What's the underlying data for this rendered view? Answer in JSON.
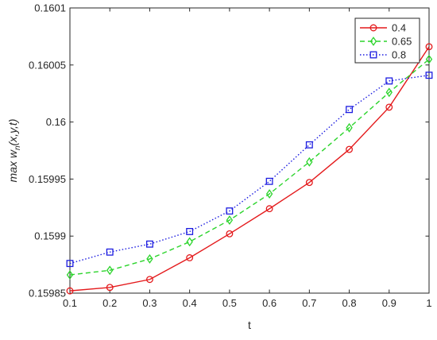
{
  "chart_data": {
    "type": "line",
    "title": "",
    "xlabel": "t",
    "ylabel": "max w_n(x,y,t)",
    "ylabel_parts": {
      "prefix": "max w",
      "subscript": "n",
      "suffix": "(x,y,t)"
    },
    "xlim": [
      0.1,
      1.0
    ],
    "ylim": [
      0.15985,
      0.1601
    ],
    "x_ticks": [
      0.1,
      0.2,
      0.3,
      0.4,
      0.5,
      0.6,
      0.7,
      0.8,
      0.9,
      1.0
    ],
    "x_tick_labels": [
      "0.1",
      "0.2",
      "0.3",
      "0.4",
      "0.5",
      "0.6",
      "0.7",
      "0.8",
      "0.9",
      "1"
    ],
    "y_ticks": [
      0.15985,
      0.1599,
      0.15995,
      0.16,
      0.16005,
      0.1601
    ],
    "y_tick_labels": [
      "0.15985",
      "0.1599",
      "0.15995",
      "0.16",
      "0.16005",
      "0.1601"
    ],
    "grid": false,
    "legend_position": "top-right",
    "x": [
      0.1,
      0.2,
      0.3,
      0.4,
      0.5,
      0.6,
      0.7,
      0.8,
      0.9,
      1.0
    ],
    "series": [
      {
        "name": "0.4",
        "color": "#e41a1c",
        "line_style": "solid",
        "marker": "circle",
        "values": [
          0.159852,
          0.159855,
          0.159862,
          0.159881,
          0.159902,
          0.159924,
          0.159947,
          0.159976,
          0.160013,
          0.160066
        ]
      },
      {
        "name": "0.65",
        "color": "#2bd42b",
        "line_style": "dashed",
        "marker": "diamond",
        "values": [
          0.159866,
          0.15987,
          0.15988,
          0.159895,
          0.159914,
          0.159937,
          0.159965,
          0.159995,
          0.160026,
          0.160055
        ]
      },
      {
        "name": "0.8",
        "color": "#1c1ce0",
        "line_style": "dotted",
        "marker": "square",
        "values": [
          0.159876,
          0.159886,
          0.159893,
          0.159904,
          0.159922,
          0.159948,
          0.15998,
          0.160011,
          0.160036,
          0.160041
        ]
      }
    ]
  }
}
